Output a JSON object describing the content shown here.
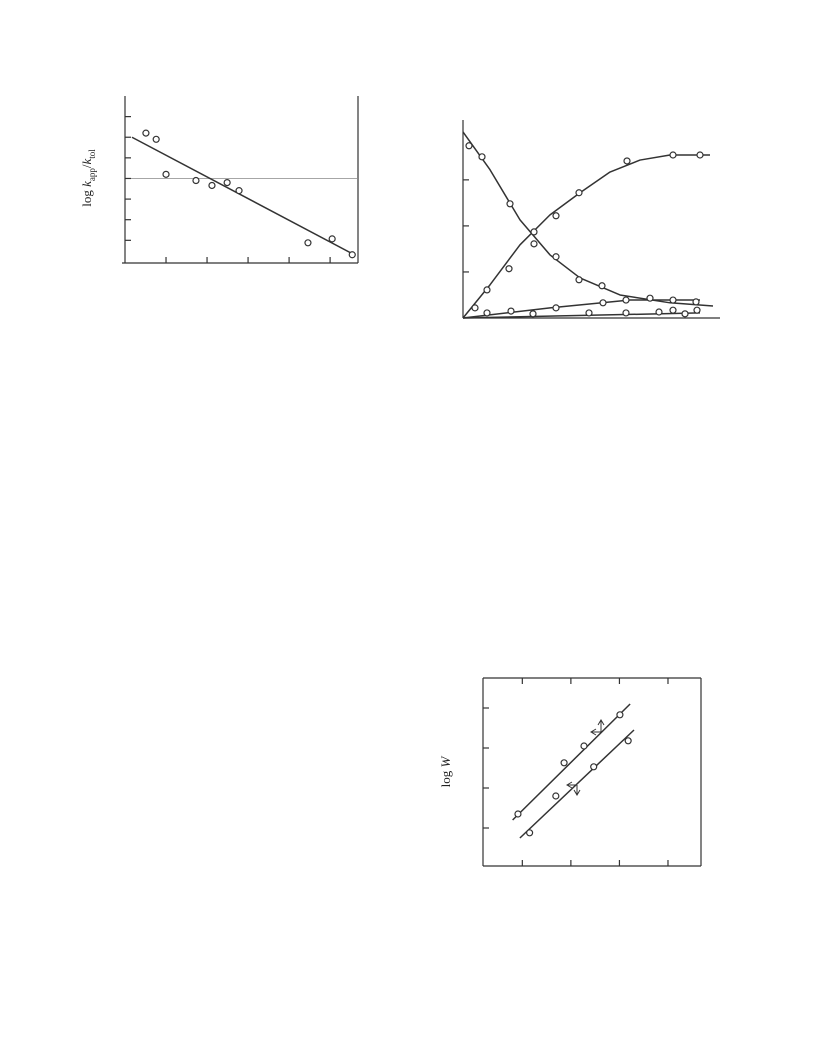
{
  "chart_data": [
    {
      "type": "scatter",
      "ylabel": [
        "log ",
        "k",
        "app",
        "/",
        "k",
        "tol"
      ],
      "xlim": [
        0,
        5.68
      ],
      "ylim": [
        -4.1,
        4.0
      ],
      "xticks": [
        1,
        2,
        3,
        4,
        5
      ],
      "yticks": [
        3,
        2,
        1,
        0,
        -1,
        -2,
        -3
      ],
      "reference_line": 0,
      "frame": [
        "left",
        "right",
        "bottom"
      ],
      "tick_sides": [
        "left",
        "bottom"
      ],
      "color": "#333",
      "series": [
        {
          "x": [
            0.51,
            0.76,
            1.0,
            1.73,
            2.12,
            2.49,
            2.78,
            4.46,
            5.05,
            5.54
          ],
          "values": [
            2.2,
            1.9,
            0.2,
            -0.1,
            -0.34,
            -0.2,
            -0.59,
            -3.12,
            -2.93,
            -3.7
          ]
        }
      ],
      "lines": [
        {
          "x": [
            0.17,
            5.59
          ],
          "values": [
            2.0,
            -3.7
          ]
        }
      ]
    },
    {
      "type": "scatter",
      "xlim": [
        0,
        10.28
      ],
      "ylim": [
        0,
        4.3
      ],
      "xticks": [],
      "yticks": [
        1,
        2,
        3
      ],
      "frame": [
        "left",
        "bottom"
      ],
      "tick_sides": [
        "left"
      ],
      "color": "#333",
      "series": [
        {
          "x": [
            0.24,
            0.76,
            1.88,
            2.84,
            3.72,
            4.64,
            5.56
          ],
          "values": [
            3.74,
            3.5,
            2.48,
            1.61,
            1.33,
            0.83,
            0.7
          ]
        },
        {
          "x": [
            0.48,
            0.96,
            1.84,
            2.84,
            3.72,
            4.64,
            6.56,
            8.4,
            9.48
          ],
          "values": [
            0.22,
            0.61,
            1.07,
            1.87,
            2.22,
            2.72,
            3.41,
            3.54,
            3.54
          ]
        },
        {
          "x": [
            0.96,
            1.92,
            3.72,
            5.6,
            6.52,
            7.48,
            8.4,
            9.32
          ],
          "values": [
            0.11,
            0.15,
            0.22,
            0.33,
            0.39,
            0.43,
            0.39,
            0.35
          ]
        },
        {
          "x": [
            2.8,
            5.04,
            6.52,
            7.84,
            8.4,
            8.88,
            9.36
          ],
          "values": [
            0.09,
            0.11,
            0.11,
            0.13,
            0.17,
            0.09,
            0.17
          ]
        }
      ],
      "lines": [
        {
          "x": [
            0,
            1.08,
            2.28,
            3.48,
            4.68,
            6.28,
            8.28,
            10.0
          ],
          "values": [
            4.04,
            3.22,
            2.13,
            1.37,
            0.87,
            0.5,
            0.33,
            0.26
          ]
        },
        {
          "x": [
            0,
            1.08,
            2.28,
            3.48,
            4.68,
            5.88,
            7.08,
            8.28,
            9.88
          ],
          "values": [
            0,
            0.72,
            1.59,
            2.24,
            2.72,
            3.17,
            3.43,
            3.54,
            3.54
          ]
        },
        {
          "x": [
            0,
            3.48,
            6.68,
            9.48
          ],
          "values": [
            0,
            0.22,
            0.39,
            0.39
          ]
        },
        {
          "x": [
            0,
            9.48
          ],
          "values": [
            0,
            0.11
          ]
        }
      ]
    },
    {
      "type": "scatter",
      "ylabel": [
        "log ",
        "W"
      ],
      "xlim": [
        0.19,
        4.68
      ],
      "ylim": [
        0.05,
        4.75
      ],
      "xticks": [
        1,
        2,
        3,
        4
      ],
      "yticks": [
        1,
        2,
        3,
        4
      ],
      "frame": [
        "left",
        "right",
        "bottom",
        "top"
      ],
      "tick_sides": [
        "left",
        "bottom",
        "top"
      ],
      "color": "#333",
      "series": [
        {
          "x": [
            0.91,
            1.86,
            2.27,
            3.01
          ],
          "values": [
            1.35,
            2.63,
            3.05,
            3.83
          ]
        },
        {
          "x": [
            1.15,
            1.69,
            2.47,
            3.18
          ],
          "values": [
            0.88,
            1.8,
            2.53,
            3.18
          ]
        }
      ],
      "lines": [
        {
          "x": [
            0.8,
            3.22
          ],
          "values": [
            1.2,
            4.1
          ]
        },
        {
          "x": [
            0.95,
            3.3
          ],
          "values": [
            0.75,
            3.45
          ]
        }
      ]
    }
  ]
}
